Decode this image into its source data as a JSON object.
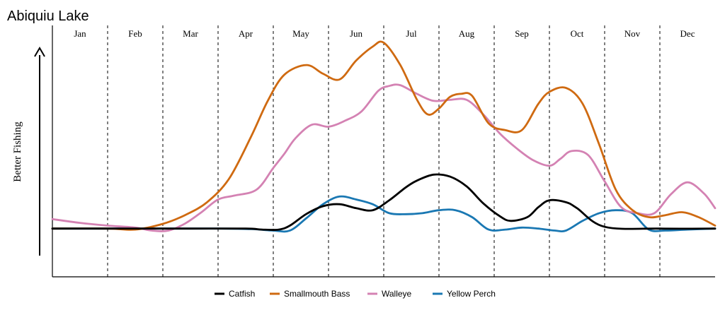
{
  "chart_data": {
    "type": "line",
    "title": "Abiquiu Lake",
    "ylabel": "Better Fishing",
    "xlabel": "",
    "months": [
      "Jan",
      "Feb",
      "Mar",
      "Apr",
      "May",
      "Jun",
      "Jul",
      "Aug",
      "Sep",
      "Oct",
      "Nov",
      "Dec"
    ],
    "xlim": [
      0,
      12
    ],
    "ylim": [
      0,
      1
    ],
    "grid": "dashed vertical month dividers",
    "legend_position": "bottom-center",
    "series": [
      {
        "name": "Catfish",
        "color": "#000000",
        "x": [
          0,
          1.5,
          2.5,
          3.5,
          3.8,
          4.1,
          4.3,
          4.6,
          4.9,
          5.2,
          5.5,
          5.8,
          6.1,
          6.4,
          6.6,
          6.9,
          7.2,
          7.5,
          7.8,
          8.1,
          8.3,
          8.6,
          8.8,
          9.0,
          9.3,
          9.5,
          10.0,
          11.0,
          12.0
        ],
        "y": [
          0.194,
          0.194,
          0.194,
          0.194,
          0.19,
          0.19,
          0.206,
          0.253,
          0.284,
          0.292,
          0.276,
          0.268,
          0.308,
          0.36,
          0.387,
          0.411,
          0.403,
          0.364,
          0.296,
          0.244,
          0.225,
          0.24,
          0.28,
          0.308,
          0.3,
          0.276,
          0.201,
          0.194,
          0.194
        ]
      },
      {
        "name": "Smallmouth Bass",
        "color": "#CF6A11",
        "x": [
          0,
          1.0,
          1.5,
          2.0,
          2.4,
          2.8,
          3.2,
          3.6,
          3.9,
          4.2,
          4.6,
          4.9,
          5.2,
          5.5,
          5.8,
          6.0,
          6.3,
          6.6,
          6.8,
          7.0,
          7.2,
          7.4,
          7.6,
          7.9,
          8.2,
          8.5,
          8.8,
          9.0,
          9.3,
          9.6,
          9.9,
          10.2,
          10.5,
          10.8,
          11.1,
          11.4,
          11.7,
          12.0
        ],
        "y": [
          0.194,
          0.194,
          0.19,
          0.213,
          0.248,
          0.3,
          0.395,
          0.565,
          0.708,
          0.813,
          0.852,
          0.817,
          0.794,
          0.87,
          0.926,
          0.942,
          0.852,
          0.713,
          0.653,
          0.677,
          0.724,
          0.736,
          0.728,
          0.617,
          0.59,
          0.59,
          0.696,
          0.744,
          0.76,
          0.697,
          0.533,
          0.351,
          0.269,
          0.24,
          0.248,
          0.26,
          0.24,
          0.206
        ]
      },
      {
        "name": "Walleye",
        "color": "#D482B3",
        "x": [
          0,
          0.5,
          1.0,
          1.5,
          1.8,
          2.1,
          2.4,
          2.7,
          3.0,
          3.3,
          3.7,
          4.0,
          4.2,
          4.4,
          4.7,
          5.0,
          5.3,
          5.6,
          5.9,
          6.1,
          6.3,
          6.6,
          6.9,
          7.2,
          7.5,
          7.8,
          8.1,
          8.4,
          8.7,
          9.0,
          9.2,
          9.4,
          9.7,
          10.0,
          10.3,
          10.6,
          10.9,
          11.2,
          11.5,
          11.8,
          12.0
        ],
        "y": [
          0.232,
          0.217,
          0.206,
          0.198,
          0.186,
          0.186,
          0.214,
          0.26,
          0.311,
          0.327,
          0.351,
          0.438,
          0.495,
          0.557,
          0.612,
          0.604,
          0.628,
          0.666,
          0.748,
          0.768,
          0.771,
          0.736,
          0.708,
          0.712,
          0.712,
          0.654,
          0.577,
          0.518,
          0.47,
          0.447,
          0.475,
          0.506,
          0.49,
          0.384,
          0.28,
          0.256,
          0.256,
          0.332,
          0.38,
          0.335,
          0.276
        ]
      },
      {
        "name": "Yellow Perch",
        "color": "#1A78B3",
        "x": [
          0,
          1.0,
          2.0,
          3.0,
          3.6,
          4.0,
          4.3,
          4.6,
          4.9,
          5.2,
          5.5,
          5.8,
          6.1,
          6.4,
          6.7,
          7.0,
          7.3,
          7.6,
          7.9,
          8.2,
          8.5,
          8.8,
          9.1,
          9.3,
          9.6,
          9.9,
          10.2,
          10.5,
          10.8,
          11.1,
          11.5,
          12.0
        ],
        "y": [
          0.194,
          0.194,
          0.194,
          0.194,
          0.192,
          0.186,
          0.186,
          0.236,
          0.292,
          0.323,
          0.311,
          0.292,
          0.256,
          0.252,
          0.256,
          0.268,
          0.268,
          0.24,
          0.19,
          0.19,
          0.198,
          0.194,
          0.186,
          0.186,
          0.225,
          0.256,
          0.268,
          0.256,
          0.19,
          0.186,
          0.19,
          0.194
        ]
      }
    ]
  }
}
